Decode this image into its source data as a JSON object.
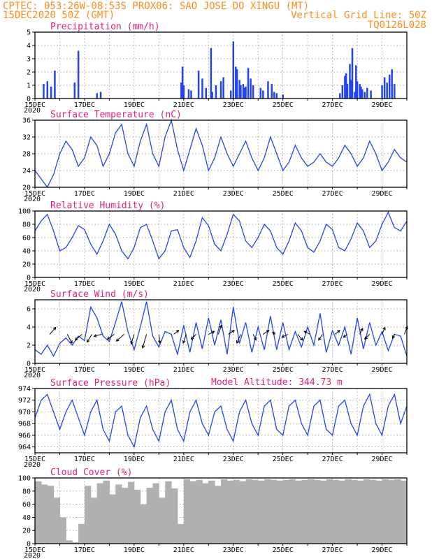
{
  "header": {
    "left1": "CPTEC:  053:26W-08:53S  PROX06: SAO JOSE DO XINGU (MT)",
    "left2": "15DEC2020 50Z (GMT)",
    "right2": "Vertical Grid Line: 50Z",
    "right3": "TQ0126L028"
  },
  "model_altitude_label": "Model Altitude: 344.73 m",
  "date_ticks": [
    "15DEC",
    "17DEC",
    "19DEC",
    "21DEC",
    "23DEC",
    "25DEC",
    "27DEC",
    "29DEC"
  ],
  "year_label": "2020",
  "colors": {
    "accent_orange": "#ff8c1a",
    "title_magenta": "#e0207f",
    "series_blue": "#2244ee",
    "cloud_gray": "#b0b0b0"
  },
  "chart_data": [
    {
      "type": "bar",
      "title": "Precipitation (mm/h)",
      "ylim": [
        0,
        5
      ],
      "yticks": [
        0,
        1,
        2,
        3,
        4,
        5
      ],
      "x_range_days": [
        0,
        15
      ],
      "x": [
        0.35,
        0.5,
        0.65,
        0.8,
        1.6,
        1.75,
        2.5,
        2.65,
        5.9,
        5.95,
        6.0,
        6.2,
        6.3,
        6.6,
        6.75,
        6.9,
        7.1,
        7.15,
        7.3,
        7.5,
        7.6,
        7.9,
        8.0,
        8.1,
        8.15,
        8.25,
        8.3,
        8.4,
        8.45,
        8.5,
        8.6,
        8.7,
        8.8,
        9.1,
        9.2,
        9.4,
        9.55,
        9.65,
        9.75,
        10.0,
        12.3,
        12.4,
        12.5,
        12.55,
        12.6,
        12.7,
        12.75,
        12.8,
        12.9,
        12.95,
        13.0,
        13.1,
        13.15,
        13.2,
        13.3,
        13.4,
        13.55,
        14.0,
        14.1,
        14.2,
        14.3,
        14.4,
        14.5
      ],
      "values": [
        1.1,
        1.3,
        0.9,
        2.1,
        1.2,
        3.6,
        0.4,
        0.5,
        1.2,
        2.4,
        1.0,
        0.7,
        0.6,
        2.1,
        1.5,
        0.8,
        3.8,
        0.5,
        1.0,
        1.3,
        1.6,
        0.6,
        4.3,
        2.4,
        2.2,
        1.4,
        1.0,
        1.1,
        0.8,
        0.9,
        2.3,
        1.5,
        1.0,
        0.8,
        0.6,
        1.3,
        1.1,
        0.5,
        0.4,
        0.3,
        0.4,
        1.0,
        1.7,
        1.9,
        1.1,
        2.6,
        1.4,
        3.8,
        0.5,
        2.5,
        1.3,
        1.1,
        0.9,
        0.7,
        0.5,
        0.8,
        0.6,
        1.0,
        1.6,
        1.2,
        1.8,
        2.2,
        1.1
      ]
    },
    {
      "type": "line",
      "title": "Surface Temperature (nC)",
      "ylim": [
        20,
        36
      ],
      "yticks": [
        20,
        24,
        28,
        32,
        36
      ],
      "x": [
        0,
        0.25,
        0.5,
        0.75,
        1,
        1.25,
        1.5,
        1.75,
        2,
        2.25,
        2.5,
        2.75,
        3,
        3.25,
        3.5,
        3.75,
        4,
        4.25,
        4.5,
        4.75,
        5,
        5.25,
        5.5,
        5.75,
        6,
        6.25,
        6.5,
        6.75,
        7,
        7.25,
        7.5,
        7.75,
        8,
        8.25,
        8.5,
        8.75,
        9,
        9.25,
        9.5,
        9.75,
        10,
        10.25,
        10.5,
        10.75,
        11,
        11.25,
        11.5,
        11.75,
        12,
        12.25,
        12.5,
        12.75,
        13,
        13.25,
        13.5,
        13.75,
        14,
        14.25,
        14.5,
        14.75,
        15
      ],
      "values": [
        24,
        22,
        20,
        23,
        28,
        31,
        29,
        25,
        27,
        32,
        30,
        25,
        28,
        33,
        35,
        28,
        25,
        31,
        35,
        28,
        25,
        32,
        36,
        29,
        24,
        29,
        34,
        30,
        24,
        27,
        32,
        28,
        25,
        28,
        31,
        27,
        24,
        27,
        32,
        28,
        24,
        26,
        30,
        27,
        25,
        26,
        28,
        26,
        25,
        27,
        30,
        28,
        25,
        27,
        31,
        28,
        24,
        26,
        29,
        27,
        26
      ]
    },
    {
      "type": "line",
      "title": "Relative Humidity (%)",
      "ylim": [
        0,
        100
      ],
      "yticks": [
        0,
        20,
        40,
        60,
        80,
        100
      ],
      "x": [
        0,
        0.25,
        0.5,
        0.75,
        1,
        1.25,
        1.5,
        1.75,
        2,
        2.25,
        2.5,
        2.75,
        3,
        3.25,
        3.5,
        3.75,
        4,
        4.25,
        4.5,
        4.75,
        5,
        5.25,
        5.5,
        5.75,
        6,
        6.25,
        6.5,
        6.75,
        7,
        7.25,
        7.5,
        7.75,
        8,
        8.25,
        8.5,
        8.75,
        9,
        9.25,
        9.5,
        9.75,
        10,
        10.25,
        10.5,
        10.75,
        11,
        11.25,
        11.5,
        11.75,
        12,
        12.25,
        12.5,
        12.75,
        13,
        13.25,
        13.5,
        13.75,
        14,
        14.25,
        14.5,
        14.75,
        15
      ],
      "values": [
        70,
        85,
        95,
        70,
        40,
        45,
        60,
        78,
        72,
        50,
        35,
        55,
        80,
        65,
        40,
        28,
        45,
        75,
        80,
        55,
        28,
        40,
        70,
        72,
        45,
        30,
        55,
        90,
        78,
        50,
        40,
        65,
        95,
        85,
        55,
        45,
        60,
        80,
        70,
        45,
        35,
        55,
        82,
        70,
        45,
        38,
        55,
        80,
        72,
        45,
        40,
        58,
        82,
        70,
        45,
        55,
        80,
        98,
        75,
        70,
        85
      ]
    },
    {
      "type": "line",
      "title": "Surface Wind (m/s)",
      "ylim": [
        0,
        7
      ],
      "yticks": [
        0,
        2,
        4,
        6
      ],
      "x": [
        0,
        0.25,
        0.5,
        0.75,
        1,
        1.25,
        1.5,
        1.75,
        2,
        2.25,
        2.5,
        2.75,
        3,
        3.25,
        3.5,
        3.75,
        4,
        4.25,
        4.5,
        4.75,
        5,
        5.25,
        5.5,
        5.75,
        6,
        6.25,
        6.5,
        6.75,
        7,
        7.25,
        7.5,
        7.75,
        8,
        8.25,
        8.5,
        8.75,
        9,
        9.25,
        9.5,
        9.75,
        10,
        10.25,
        10.5,
        10.75,
        11,
        11.25,
        11.5,
        11.75,
        12,
        12.25,
        12.5,
        12.75,
        13,
        13.25,
        13.5,
        13.75,
        14,
        14.25,
        14.5,
        14.75,
        15
      ],
      "values": [
        1.5,
        1.0,
        2.0,
        0.8,
        2.2,
        2.8,
        2.0,
        3.0,
        2.5,
        6.2,
        5.0,
        3.0,
        2.4,
        4.5,
        6.8,
        3.5,
        1.5,
        4.0,
        6.8,
        3.0,
        1.8,
        3.5,
        3.2,
        1.0,
        4.2,
        1.2,
        4.5,
        1.6,
        5.0,
        2.0,
        4.8,
        1.0,
        6.2,
        2.2,
        4.5,
        1.2,
        4.0,
        1.5,
        5.2,
        1.5,
        4.5,
        1.5,
        3.5,
        1.8,
        4.0,
        2.0,
        5.5,
        1.2,
        3.6,
        2.0,
        4.0,
        1.0,
        5.0,
        1.6,
        4.5,
        2.0,
        3.5,
        1.4,
        3.2,
        3.0,
        0.8
      ]
    },
    {
      "type": "line",
      "title": "Surface Pressure (hPa)",
      "ylim": [
        963,
        974
      ],
      "yticks": [
        964,
        966,
        968,
        970,
        972,
        974
      ],
      "x": [
        0,
        0.25,
        0.5,
        0.75,
        1,
        1.25,
        1.5,
        1.75,
        2,
        2.25,
        2.5,
        2.75,
        3,
        3.25,
        3.5,
        3.75,
        4,
        4.25,
        4.5,
        4.75,
        5,
        5.25,
        5.5,
        5.75,
        6,
        6.25,
        6.5,
        6.75,
        7,
        7.25,
        7.5,
        7.75,
        8,
        8.25,
        8.5,
        8.75,
        9,
        9.25,
        9.5,
        9.75,
        10,
        10.25,
        10.5,
        10.75,
        11,
        11.25,
        11.5,
        11.75,
        12,
        12.25,
        12.5,
        12.75,
        13,
        13.25,
        13.5,
        13.75,
        14,
        14.25,
        14.5,
        14.75,
        15
      ],
      "values": [
        969,
        972,
        973,
        970,
        967,
        970,
        972,
        969,
        966,
        970,
        972,
        967,
        965,
        970,
        971,
        966,
        964,
        969,
        971,
        967,
        965,
        970,
        972,
        967,
        965,
        970,
        972,
        968,
        966,
        970,
        971,
        967,
        965,
        970,
        972,
        968,
        966,
        971,
        972,
        967,
        966,
        971,
        972,
        968,
        966,
        971,
        972,
        967,
        966,
        971,
        972,
        968,
        966,
        971,
        973,
        968,
        966,
        971,
        973,
        968,
        971
      ]
    },
    {
      "type": "bar",
      "title": "Cloud Cover (%)",
      "ylim": [
        0,
        100
      ],
      "yticks": [
        0,
        20,
        40,
        60,
        80,
        100
      ],
      "x_range_days": [
        0,
        15
      ],
      "x": [
        0,
        0.25,
        0.5,
        0.75,
        1,
        1.25,
        1.5,
        1.75,
        2,
        2.25,
        2.5,
        2.75,
        3,
        3.25,
        3.5,
        3.75,
        4,
        4.25,
        4.5,
        4.75,
        5,
        5.25,
        5.5,
        5.75,
        6,
        6.25,
        6.5,
        6.75,
        7,
        7.25,
        7.5,
        7.75,
        8,
        8.25,
        8.5,
        8.75,
        9,
        9.25,
        9.5,
        9.75,
        10,
        10.25,
        10.5,
        10.75,
        11,
        11.25,
        11.5,
        11.75,
        12,
        12.25,
        12.5,
        12.75,
        13,
        13.25,
        13.5,
        13.75,
        14,
        14.25,
        14.5,
        14.75
      ],
      "values": [
        95,
        90,
        88,
        70,
        40,
        5,
        2,
        30,
        88,
        70,
        92,
        96,
        75,
        90,
        85,
        94,
        82,
        60,
        85,
        92,
        70,
        95,
        84,
        30,
        98,
        95,
        97,
        92,
        96,
        88,
        98,
        96,
        97,
        95,
        98,
        97,
        96,
        98,
        97,
        96,
        97,
        98,
        96,
        97,
        98,
        97,
        96,
        98,
        97,
        96,
        98,
        97,
        96,
        98,
        97,
        96,
        98,
        97,
        98,
        96
      ]
    }
  ],
  "wind_arrows": [
    {
      "x": 0.6,
      "u": 0.6,
      "v": 0.7
    },
    {
      "x": 1.3,
      "u": 0.5,
      "v": -0.9
    },
    {
      "x": 1.9,
      "u": -0.7,
      "v": -0.6
    },
    {
      "x": 2.3,
      "u": -0.5,
      "v": -0.8
    },
    {
      "x": 2.7,
      "u": -0.8,
      "v": -0.2
    },
    {
      "x": 3.2,
      "u": -0.7,
      "v": -0.5
    },
    {
      "x": 3.6,
      "u": -0.8,
      "v": -0.7
    },
    {
      "x": 4.0,
      "u": -0.3,
      "v": -1.0
    },
    {
      "x": 4.5,
      "u": -0.4,
      "v": -1.4
    },
    {
      "x": 5.0,
      "u": 0.1,
      "v": -0.9
    },
    {
      "x": 5.6,
      "u": 0.5,
      "v": 0.4
    },
    {
      "x": 6.1,
      "u": -0.3,
      "v": -0.9
    },
    {
      "x": 6.5,
      "u": -0.5,
      "v": -0.5
    },
    {
      "x": 7.0,
      "u": 0.6,
      "v": 0.3
    },
    {
      "x": 7.4,
      "u": 0.3,
      "v": 0.9
    },
    {
      "x": 7.8,
      "u": 0.6,
      "v": 0.4
    },
    {
      "x": 8.3,
      "u": -0.4,
      "v": -0.9
    },
    {
      "x": 8.8,
      "u": 0.3,
      "v": -0.6
    },
    {
      "x": 9.2,
      "u": 0.6,
      "v": 0.4
    },
    {
      "x": 9.7,
      "u": -0.3,
      "v": 0.2
    },
    {
      "x": 10.2,
      "u": -0.6,
      "v": -0.3
    },
    {
      "x": 10.6,
      "u": 0.5,
      "v": -0.6
    },
    {
      "x": 11.1,
      "u": -0.6,
      "v": 0.3
    },
    {
      "x": 11.6,
      "u": -0.4,
      "v": -0.6
    },
    {
      "x": 12.1,
      "u": 0.5,
      "v": 0.4
    },
    {
      "x": 12.6,
      "u": -0.4,
      "v": -0.3
    },
    {
      "x": 13.1,
      "u": 0.3,
      "v": 0.6
    },
    {
      "x": 13.5,
      "u": -0.5,
      "v": -0.5
    },
    {
      "x": 14.0,
      "u": 0.3,
      "v": 0.7
    },
    {
      "x": 14.5,
      "u": -0.2,
      "v": -0.4
    },
    {
      "x": 14.9,
      "u": 0.3,
      "v": 0.8
    }
  ]
}
